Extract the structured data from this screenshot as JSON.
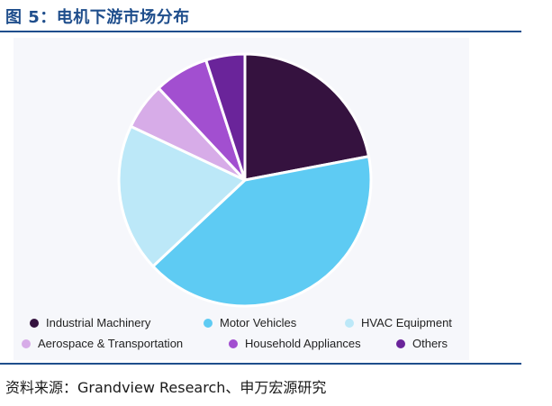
{
  "figure": {
    "title": "图 5：电机下游市场分布",
    "source": "资料来源：Grandview Research、申万宏源研究"
  },
  "chart_data": {
    "type": "pie",
    "title": "",
    "legend_position": "bottom",
    "slices": [
      {
        "label": "Industrial Machinery",
        "value": 22,
        "color": "#35123f"
      },
      {
        "label": "Motor Vehicles",
        "value": 41,
        "color": "#5ecbf3"
      },
      {
        "label": "HVAC Equipment",
        "value": 19,
        "color": "#bce8f8"
      },
      {
        "label": "Aerospace & Transportation",
        "value": 6,
        "color": "#d7ace8"
      },
      {
        "label": "Household Appliances",
        "value": 7,
        "color": "#a24fd0"
      },
      {
        "label": "Others",
        "value": 5,
        "color": "#6a249a"
      }
    ]
  }
}
